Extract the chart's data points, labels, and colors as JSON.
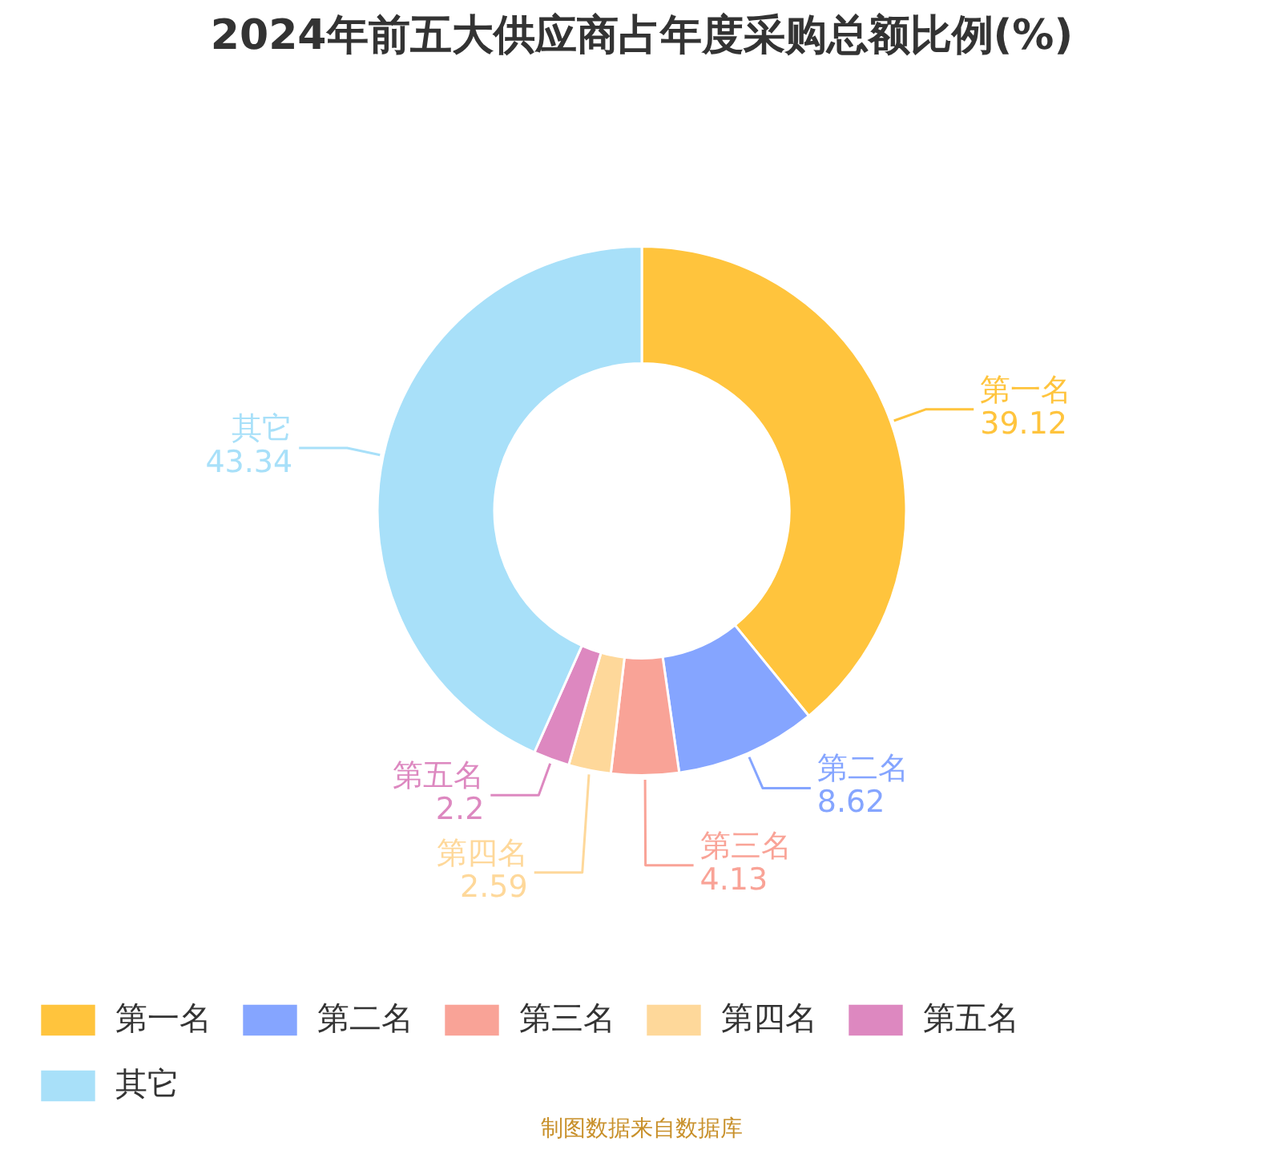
{
  "chart_data": {
    "type": "donut",
    "title": "2024年前五大供应商占年度采购总额比例(%)",
    "categories": [
      "第一名",
      "第二名",
      "第三名",
      "第四名",
      "第五名",
      "其它"
    ],
    "values": [
      39.12,
      8.62,
      4.13,
      2.59,
      2.2,
      43.34
    ],
    "colors": [
      "#ffc43d",
      "#85a5ff",
      "#f9a397",
      "#fed89a",
      "#dd88c0",
      "#a8e0f9"
    ],
    "data_labels": true,
    "legend": "bottom",
    "annotations": [
      "制图数据来自数据库"
    ]
  }
}
